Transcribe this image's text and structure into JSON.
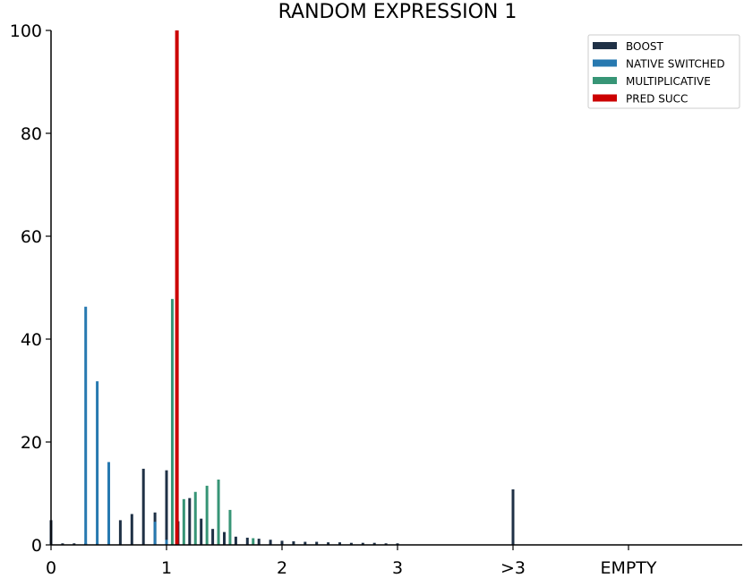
{
  "chart_data": {
    "type": "bar",
    "title": "RANDOM EXPRESSION 1",
    "xlabel": "",
    "ylabel": "",
    "ylim": [
      0,
      100
    ],
    "yticks": [
      0,
      20,
      40,
      60,
      80,
      100
    ],
    "xticks": [
      {
        "value": 0,
        "label": "0"
      },
      {
        "value": 1,
        "label": "1"
      },
      {
        "value": 2,
        "label": "2"
      },
      {
        "value": 3,
        "label": "3"
      },
      {
        "value": 4,
        "label": ">3"
      },
      {
        "value": 5,
        "label": "EMPTY"
      }
    ],
    "legend_position": "top-right",
    "grid": false,
    "series": [
      {
        "name": "BOOST",
        "color": "#1f3146",
        "points": [
          [
            0.0,
            4.8
          ],
          [
            0.1,
            0.3
          ],
          [
            0.2,
            0.3
          ],
          [
            0.3,
            0.3
          ],
          [
            0.4,
            0.3
          ],
          [
            0.5,
            1.2
          ],
          [
            0.6,
            4.8
          ],
          [
            0.7,
            6.0
          ],
          [
            0.8,
            14.8
          ],
          [
            0.9,
            6.3
          ],
          [
            1.0,
            14.5
          ],
          [
            1.1,
            4.6
          ],
          [
            1.2,
            9.1
          ],
          [
            1.3,
            5.1
          ],
          [
            1.4,
            3.1
          ],
          [
            1.5,
            2.5
          ],
          [
            1.6,
            1.6
          ],
          [
            1.7,
            1.4
          ],
          [
            1.8,
            1.2
          ],
          [
            1.9,
            1.0
          ],
          [
            2.0,
            0.8
          ],
          [
            2.1,
            0.7
          ],
          [
            2.2,
            0.6
          ],
          [
            2.3,
            0.6
          ],
          [
            2.4,
            0.5
          ],
          [
            2.5,
            0.5
          ],
          [
            2.6,
            0.4
          ],
          [
            2.7,
            0.4
          ],
          [
            2.8,
            0.4
          ],
          [
            2.9,
            0.3
          ],
          [
            3.0,
            0.3
          ],
          [
            4.0,
            10.8
          ]
        ]
      },
      {
        "name": "NATIVE SWITCHED",
        "color": "#2779b0",
        "points": [
          [
            0.3,
            46.3
          ],
          [
            0.4,
            31.8
          ],
          [
            0.5,
            16.1
          ],
          [
            0.9,
            4.5
          ],
          [
            1.0,
            1.0
          ]
        ]
      },
      {
        "name": "MULTIPLICATIVE",
        "color": "#379576",
        "points": [
          [
            1.05,
            47.8
          ],
          [
            1.15,
            8.9
          ],
          [
            1.25,
            10.3
          ],
          [
            1.35,
            11.5
          ],
          [
            1.45,
            12.7
          ],
          [
            1.55,
            6.8
          ],
          [
            1.75,
            1.3
          ]
        ]
      },
      {
        "name": "PRED SUCC",
        "color": "#cc0000",
        "points": [
          [
            1.09,
            100
          ]
        ]
      }
    ]
  }
}
